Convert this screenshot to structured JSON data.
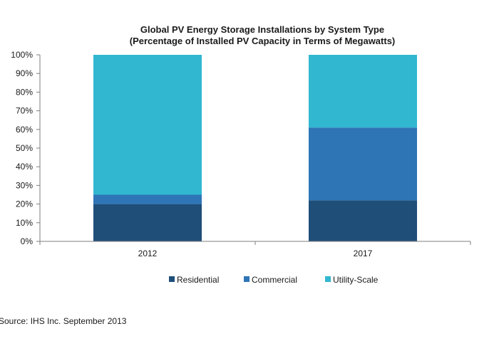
{
  "chart_data": {
    "type": "bar",
    "stacked": true,
    "title": "Global PV Energy Storage Installations by System Type",
    "subtitle": "(Percentage of Installed PV Capacity in Terms of Megawatts)",
    "categories": [
      "2012",
      "2017"
    ],
    "series": [
      {
        "name": "Residential",
        "color": "#1f4e79",
        "values": [
          20,
          22
        ]
      },
      {
        "name": "Commercial",
        "color": "#2e75b6",
        "values": [
          5,
          39
        ]
      },
      {
        "name": "Utility-Scale",
        "color": "#31b7d0",
        "values": [
          75,
          39
        ]
      }
    ],
    "y_ticks": [
      "0%",
      "10%",
      "20%",
      "30%",
      "40%",
      "50%",
      "60%",
      "70%",
      "80%",
      "90%",
      "100%"
    ],
    "ylim": [
      0,
      100
    ],
    "xlabel": "",
    "ylabel": "",
    "grid": false,
    "legend_position": "bottom"
  },
  "source": "Source: IHS Inc. September 2013"
}
